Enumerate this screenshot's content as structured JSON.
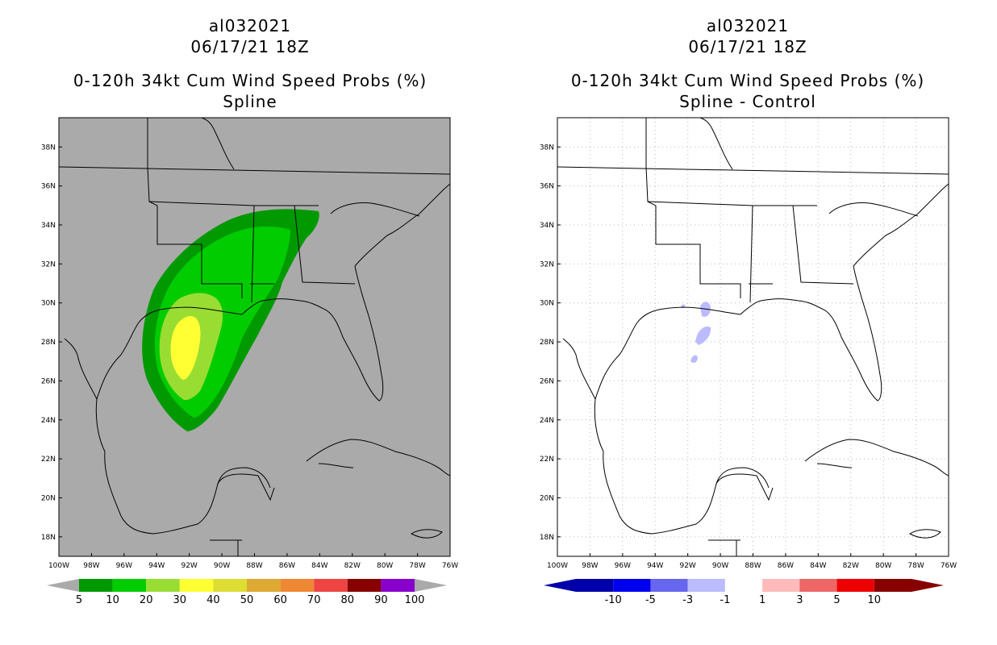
{
  "panels": [
    {
      "id": "left",
      "title_lines": [
        "al032021",
        "06/17/21 18Z",
        "0-120h 34kt Cum Wind Speed Probs (%)",
        "Spline"
      ]
    },
    {
      "id": "right",
      "title_lines": [
        "al032021",
        "06/17/21 18Z",
        "0-120h 34kt Cum Wind Speed Probs (%)",
        "Spline - Control"
      ]
    }
  ],
  "colors": {
    "left_background": "#aaaaaa",
    "right_background": "#ffffff",
    "coast": "#000000",
    "grid": "#bbbbbb"
  },
  "chart_data": [
    {
      "type": "heatmap",
      "title": "0-120h 34kt Cum Wind Speed Probs (%) Spline",
      "x_ticks": [
        "100W",
        "98W",
        "96W",
        "94W",
        "92W",
        "90W",
        "88W",
        "86W",
        "84W",
        "82W",
        "80W",
        "78W",
        "76W"
      ],
      "y_ticks": [
        "18N",
        "20N",
        "22N",
        "24N",
        "26N",
        "28N",
        "30N",
        "32N",
        "34N",
        "36N",
        "38N"
      ],
      "xlim": [
        -100,
        -76
      ],
      "ylim": [
        17,
        39.5
      ],
      "colorbar": {
        "levels": [
          "5",
          "10",
          "20",
          "30",
          "40",
          "50",
          "60",
          "70",
          "80",
          "90",
          "100"
        ],
        "colors": [
          "#009900",
          "#00cc00",
          "#99dd33",
          "#ffff33",
          "#dddd33",
          "#ddaa33",
          "#ee8833",
          "#ee4444",
          "#880000",
          "#8800cc"
        ]
      },
      "regions": [
        {
          "level": "5-10",
          "color": "#009900"
        },
        {
          "level": "10-20",
          "color": "#00cc00"
        },
        {
          "level": "20-30",
          "color": "#99dd33"
        },
        {
          "level": "30-40",
          "color": "#ffff33"
        }
      ]
    },
    {
      "type": "heatmap",
      "title": "0-120h 34kt Cum Wind Speed Probs (%) Spline - Control",
      "x_ticks": [
        "100W",
        "98W",
        "96W",
        "94W",
        "92W",
        "90W",
        "88W",
        "86W",
        "84W",
        "82W",
        "80W",
        "78W",
        "76W"
      ],
      "y_ticks": [
        "18N",
        "20N",
        "22N",
        "24N",
        "26N",
        "28N",
        "30N",
        "32N",
        "34N",
        "36N",
        "38N"
      ],
      "xlim": [
        -100,
        -76
      ],
      "ylim": [
        17,
        39.5
      ],
      "colorbar": {
        "levels": [
          "-10",
          "-5",
          "-3",
          "-1",
          "1",
          "3",
          "5",
          "10"
        ],
        "colors": [
          "#0000aa",
          "#0000ee",
          "#6666ee",
          "#bbbbff",
          "#ffffff",
          "#ffbbbb",
          "#ee6666",
          "#ee0000",
          "#880000"
        ]
      },
      "regions": [
        {
          "level": "-3 to -1",
          "color": "#bbbbff"
        }
      ]
    }
  ]
}
